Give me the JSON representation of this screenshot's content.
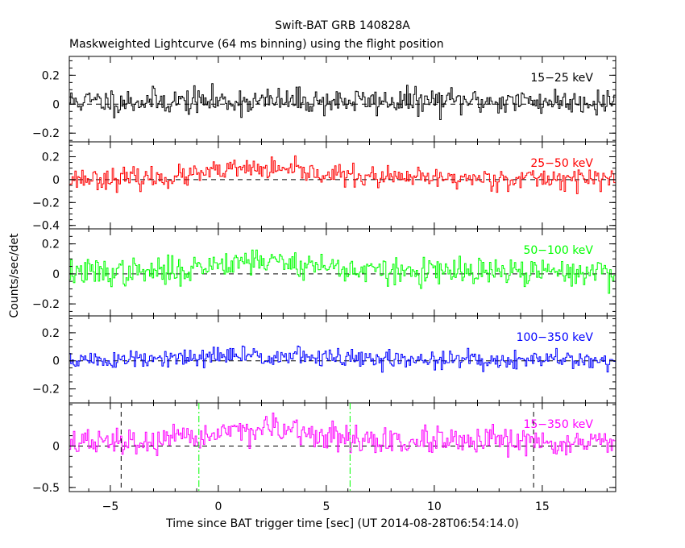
{
  "chart_data": {
    "type": "line",
    "title": "Swift-BAT GRB 140828A",
    "subtitle": "Maskweighted Lightcurve (64 ms binning) using the flight position",
    "xlabel": "Time since BAT trigger time [sec] (UT 2014-08-28T06:54:14.0)",
    "ylabel": "Counts/sec/det",
    "xlim": [
      -6.9,
      18.4
    ],
    "x_ticks": [
      -5,
      0,
      5,
      10,
      15
    ],
    "x_tick_labels": [
      "−5",
      "0",
      "5",
      "10",
      "15"
    ],
    "bin_width_sec": 0.064,
    "panels": [
      {
        "name": "15-25 keV",
        "label": "15−25 keV",
        "color": "#000000",
        "ylim": [
          -0.26,
          0.33
        ],
        "y_ticks": [
          -0.2,
          0,
          0.2
        ],
        "y_tick_labels": [
          "−0.2",
          "0",
          "0.2"
        ],
        "baseline": 0.04,
        "noise": 0.045,
        "pulse": 0.0,
        "seed": 11
      },
      {
        "name": "25-50 keV",
        "label": "25−50 keV",
        "color": "#ff0000",
        "ylim": [
          -0.43,
          0.33
        ],
        "y_ticks": [
          -0.4,
          -0.2,
          0,
          0.2
        ],
        "y_tick_labels": [
          "−0.4",
          "−0.2",
          "0",
          "0.2"
        ],
        "baseline": 0.02,
        "noise": 0.045,
        "pulse": 0.07,
        "seed": 23
      },
      {
        "name": "50-100 keV",
        "label": "50−100 keV",
        "color": "#00ff00",
        "ylim": [
          -0.28,
          0.3
        ],
        "y_ticks": [
          -0.2,
          0,
          0.2
        ],
        "y_tick_labels": [
          "−0.2",
          "0",
          "0.2"
        ],
        "baseline": 0.02,
        "noise": 0.045,
        "pulse": 0.07,
        "seed": 37
      },
      {
        "name": "100-350 keV",
        "label": "100−350 keV",
        "color": "#0000ff",
        "ylim": [
          -0.3,
          0.32
        ],
        "y_ticks": [
          -0.2,
          0,
          0.2
        ],
        "y_tick_labels": [
          "−0.2",
          "0",
          "0.2"
        ],
        "baseline": 0.01,
        "noise": 0.035,
        "pulse": 0.03,
        "seed": 51
      },
      {
        "name": "15-350 keV",
        "label": "15−350 keV",
        "color": "#ff00ff",
        "ylim": [
          -0.55,
          0.52
        ],
        "y_ticks": [
          -0.5,
          0
        ],
        "y_tick_labels": [
          "−0.5",
          "0"
        ],
        "baseline": 0.08,
        "noise": 0.08,
        "pulse": 0.14,
        "seed": 67
      }
    ],
    "markers": [
      {
        "x": -4.5,
        "style": "dashed",
        "color": "#000000"
      },
      {
        "x": -0.9,
        "style": "dash-dot",
        "color": "#00ff00"
      },
      {
        "x": 6.1,
        "style": "dash-dot",
        "color": "#00ff00"
      },
      {
        "x": 14.6,
        "style": "dashed",
        "color": "#000000"
      }
    ]
  }
}
